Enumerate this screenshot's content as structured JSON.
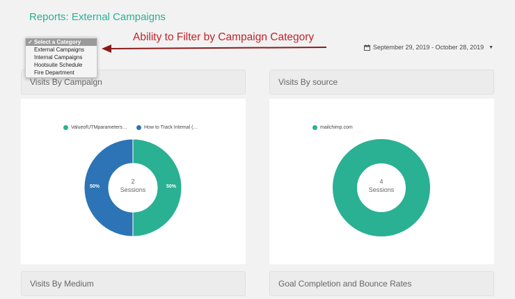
{
  "page": {
    "title": "Reports: External Campaigns"
  },
  "category_filter": {
    "options": [
      {
        "label": "Select a Category",
        "selected": true
      },
      {
        "label": "External Campaigns",
        "selected": false
      },
      {
        "label": "Internal Campaigns",
        "selected": false
      },
      {
        "label": "Hootsuite Schedule",
        "selected": false
      },
      {
        "label": "Fire Department",
        "selected": false
      }
    ],
    "check_mark": "✓"
  },
  "annotation": {
    "text": "Ability to Filter by Campaign Category",
    "color": "#c0242b"
  },
  "date_range": {
    "label": "September 29, 2019 - October 28, 2019",
    "icon": "calendar-icon"
  },
  "panels": {
    "visits_by_campaign": {
      "title": "Visits By Campaign",
      "legend": [
        {
          "label": "ValueofUTMparameters…",
          "color": "#2ab093"
        },
        {
          "label": "How to Track Internal (…",
          "color": "#2c74b5"
        }
      ],
      "center_value": "2",
      "center_label": "Sessions",
      "slices": [
        {
          "label": "50%",
          "value": 50,
          "color": "#2ab093"
        },
        {
          "label": "50%",
          "value": 50,
          "color": "#2c74b5"
        }
      ]
    },
    "visits_by_source": {
      "title": "Visits By source",
      "legend": [
        {
          "label": "mailchimp.com",
          "color": "#2ab093"
        }
      ],
      "center_value": "4",
      "center_label": "Sessions",
      "slices": [
        {
          "value": 100,
          "color": "#2ab093"
        }
      ]
    },
    "visits_by_medium": {
      "title": "Visits By Medium"
    },
    "goal_completion": {
      "title": "Goal Completion and Bounce Rates"
    }
  },
  "colors": {
    "accent": "#2ab093",
    "secondary": "#2c74b5"
  }
}
